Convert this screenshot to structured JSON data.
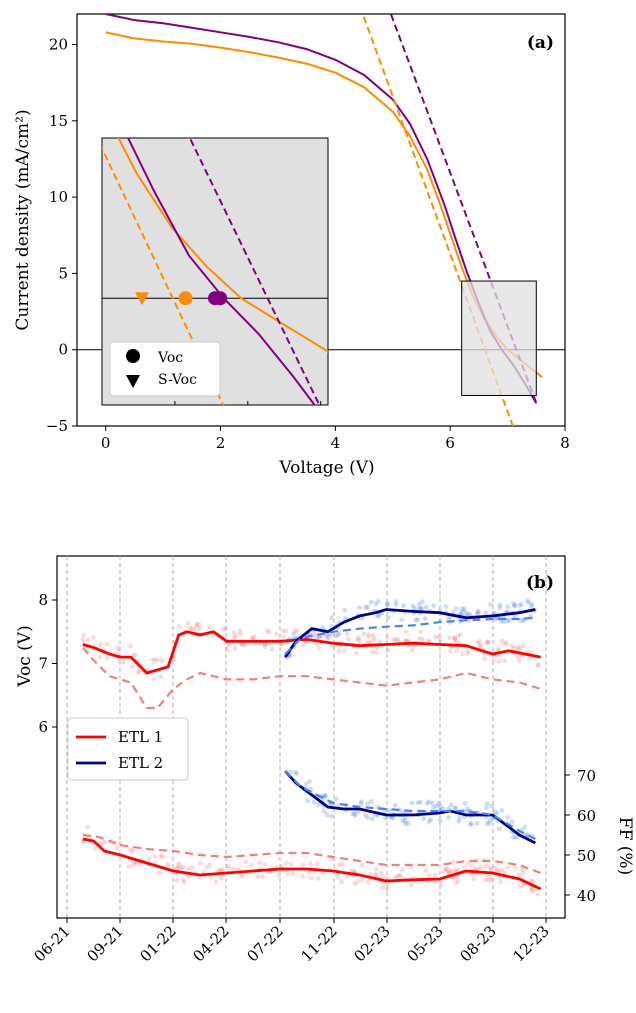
{
  "chart_data": [
    {
      "type": "line",
      "panel_label": "(a)",
      "xlabel": "Voltage (V)",
      "ylabel": "Current density (mA/cm²)",
      "xlim": [
        -0.5,
        8
      ],
      "ylim": [
        -5,
        22
      ],
      "xticks": [
        "0",
        "2",
        "4",
        "6",
        "8"
      ],
      "yticks": [
        "−5",
        "0",
        "5",
        "10",
        "15",
        "20"
      ],
      "colors": {
        "orange": "#ff8c00",
        "purple": "#800080",
        "inset_bg": "#e0e0e0"
      },
      "series": [
        {
          "color": "orange",
          "style": "solid",
          "x": [
            0,
            0.5,
            1,
            1.5,
            2,
            2.5,
            3,
            3.5,
            4,
            4.5,
            5,
            5.3,
            5.6,
            5.8,
            6.0,
            6.2,
            6.4,
            6.6,
            6.8,
            7.0,
            7.2,
            7.4,
            7.6
          ],
          "y": [
            20.8,
            20.4,
            20.2,
            20.05,
            19.8,
            19.5,
            19.15,
            18.75,
            18.15,
            17.2,
            15.6,
            14.0,
            11.8,
            9.8,
            7.6,
            5.4,
            3.5,
            2.0,
            0.9,
            0.0,
            -0.6,
            -1.2,
            -1.8
          ]
        },
        {
          "color": "purple",
          "style": "solid",
          "x": [
            0,
            0.5,
            1,
            1.5,
            2,
            2.5,
            3,
            3.5,
            4,
            4.5,
            5,
            5.3,
            5.6,
            5.9,
            6.1,
            6.3,
            6.5,
            6.7,
            6.9,
            7.1,
            7.3,
            7.5
          ],
          "y": [
            22,
            21.6,
            21.4,
            21.1,
            20.8,
            20.5,
            20.15,
            19.7,
            19.0,
            18.0,
            16.4,
            14.8,
            12.5,
            9.5,
            7.2,
            5.0,
            3.0,
            1.2,
            0.0,
            -1.0,
            -2.2,
            -3.5
          ]
        },
        {
          "color": "orange",
          "style": "dashed",
          "x": [
            4.43,
            7.12
          ],
          "y": [
            22.5,
            -5.3
          ]
        },
        {
          "color": "purple",
          "style": "dashed",
          "x": [
            4.5,
            7.5
          ],
          "y": [
            26.7,
            -3.5
          ]
        }
      ],
      "inset": {
        "xlim": [
          6.2,
          7.5
        ],
        "ylim": [
          -3.0,
          4.5
        ],
        "points": [
          {
            "marker": "circle",
            "color": "orange",
            "x": 6.68,
            "y": 0.0
          },
          {
            "marker": "circle",
            "color": "purple",
            "x": 6.88,
            "y": 0.0
          },
          {
            "marker": "circle",
            "color": "purple",
            "x": 6.85,
            "y": 0.0
          },
          {
            "marker": "triangle",
            "color": "orange",
            "x": 6.43,
            "y": 0.0
          }
        ],
        "legend": [
          {
            "marker": "circle",
            "label": "Voc"
          },
          {
            "marker": "triangle",
            "label": "S-Voc"
          }
        ]
      }
    },
    {
      "type": "line",
      "panel_label": "(b)",
      "ylabel_left": "Voc (V)",
      "ylabel_right": "FF (%)",
      "xticks": [
        "06-21",
        "09-21",
        "01-22",
        "04-22",
        "07-22",
        "11-22",
        "02-23",
        "05-23",
        "08-23",
        "12-23"
      ],
      "yticks_left": [
        "6",
        "7",
        "8"
      ],
      "yticks_right": [
        "40",
        "50",
        "60",
        "70"
      ],
      "colors": {
        "etl1": "#ff0000",
        "etl1_light": "#f08080",
        "etl2": "#00008b",
        "etl2_light": "#4a86e8"
      },
      "legend": [
        "ETL 1",
        "ETL 2"
      ],
      "series": [
        {
          "name": "ETL 1",
          "metric": "Voc",
          "style": "solid",
          "x": [
            0.3,
            0.5,
            0.8,
            1.0,
            1.2,
            1.5,
            1.7,
            1.9,
            2.0,
            2.1,
            2.25,
            2.5,
            2.75,
            3.0,
            3.5,
            4.0,
            4.5,
            5.0,
            5.5,
            6.0,
            6.5,
            7.0,
            7.5,
            7.8,
            8.0,
            8.3,
            8.6,
            8.9
          ],
          "y": [
            7.3,
            7.25,
            7.15,
            7.1,
            7.1,
            6.85,
            6.9,
            6.95,
            7.2,
            7.45,
            7.5,
            7.45,
            7.5,
            7.35,
            7.35,
            7.35,
            7.38,
            7.32,
            7.28,
            7.3,
            7.32,
            7.3,
            7.28,
            7.2,
            7.15,
            7.2,
            7.15,
            7.1
          ]
        },
        {
          "name": "ETL 1",
          "metric": "Voc",
          "style": "dashed",
          "x": [
            0.3,
            0.5,
            0.8,
            1.0,
            1.2,
            1.5,
            1.7,
            2.0,
            2.25,
            2.5,
            3.0,
            3.5,
            4.0,
            4.5,
            5.0,
            5.5,
            6.0,
            6.5,
            7.0,
            7.5,
            8.0,
            8.5,
            8.9
          ],
          "y": [
            7.25,
            7.05,
            6.8,
            6.75,
            6.7,
            6.3,
            6.3,
            6.6,
            6.75,
            6.85,
            6.75,
            6.75,
            6.8,
            6.8,
            6.75,
            6.7,
            6.65,
            6.7,
            6.75,
            6.85,
            6.75,
            6.7,
            6.6
          ]
        },
        {
          "name": "ETL 2",
          "metric": "Voc",
          "style": "solid",
          "x": [
            4.1,
            4.3,
            4.6,
            4.9,
            5.2,
            5.5,
            5.8,
            6.0,
            6.5,
            7.0,
            7.5,
            8.0,
            8.5,
            8.8
          ],
          "y": [
            7.1,
            7.35,
            7.55,
            7.5,
            7.65,
            7.75,
            7.8,
            7.85,
            7.82,
            7.8,
            7.72,
            7.75,
            7.8,
            7.85
          ]
        },
        {
          "name": "ETL 2",
          "metric": "Voc",
          "style": "dashed",
          "x": [
            4.1,
            4.4,
            4.7,
            5.0,
            5.5,
            6.0,
            6.5,
            7.0,
            7.5,
            8.0,
            8.5,
            8.8
          ],
          "y": [
            7.15,
            7.4,
            7.45,
            7.5,
            7.55,
            7.58,
            7.6,
            7.65,
            7.68,
            7.7,
            7.7,
            7.72
          ]
        },
        {
          "name": "ETL 1",
          "metric": "FF",
          "style": "solid",
          "x": [
            0.3,
            0.5,
            0.7,
            1.0,
            1.5,
            2.0,
            2.5,
            3.0,
            3.5,
            4.0,
            4.5,
            5.0,
            5.5,
            6.0,
            6.5,
            7.0,
            7.5,
            8.0,
            8.5,
            8.9
          ],
          "y": [
            54,
            53.5,
            51,
            50,
            48,
            46,
            45,
            45.5,
            46,
            46.5,
            46.5,
            46,
            45,
            43.5,
            43.8,
            44,
            46,
            45.5,
            44,
            41.5
          ]
        },
        {
          "name": "ETL 1",
          "metric": "FF",
          "style": "dashed",
          "x": [
            0.3,
            0.6,
            1.0,
            1.5,
            2.0,
            2.5,
            3.0,
            3.5,
            4.0,
            4.5,
            5.0,
            5.5,
            6.0,
            6.5,
            7.0,
            7.5,
            8.0,
            8.5,
            8.9
          ],
          "y": [
            55,
            54.5,
            52.5,
            51.5,
            51,
            50,
            49.5,
            50,
            50.5,
            50.5,
            49.5,
            48.5,
            47.5,
            47.5,
            47.5,
            48.5,
            48.5,
            47.5,
            45.5
          ]
        },
        {
          "name": "ETL 2",
          "metric": "FF",
          "style": "solid",
          "x": [
            4.1,
            4.3,
            4.6,
            4.9,
            5.2,
            5.5,
            6.0,
            6.5,
            7.0,
            7.2,
            7.5,
            8.0,
            8.5,
            8.8
          ],
          "y": [
            71,
            68,
            65,
            62,
            61.5,
            61.5,
            60,
            60,
            60.5,
            61,
            60,
            60,
            55,
            53
          ]
        },
        {
          "name": "ETL 2",
          "metric": "FF",
          "style": "dashed",
          "x": [
            4.1,
            4.4,
            4.7,
            5.0,
            5.5,
            6.0,
            6.5,
            7.0,
            7.5,
            8.0,
            8.5,
            8.8
          ],
          "y": [
            71,
            67,
            65,
            63,
            62,
            61.5,
            61,
            61,
            61,
            60,
            56,
            54
          ]
        }
      ]
    }
  ]
}
